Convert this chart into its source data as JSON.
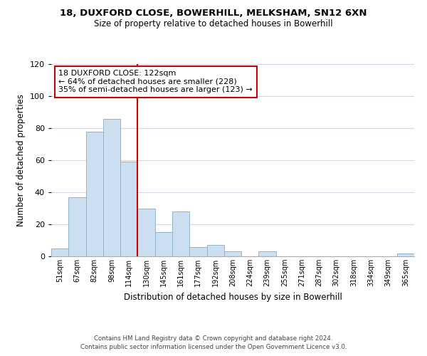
{
  "title_line1": "18, DUXFORD CLOSE, BOWERHILL, MELKSHAM, SN12 6XN",
  "title_line2": "Size of property relative to detached houses in Bowerhill",
  "xlabel": "Distribution of detached houses by size in Bowerhill",
  "ylabel": "Number of detached properties",
  "bar_labels": [
    "51sqm",
    "67sqm",
    "82sqm",
    "98sqm",
    "114sqm",
    "130sqm",
    "145sqm",
    "161sqm",
    "177sqm",
    "192sqm",
    "208sqm",
    "224sqm",
    "239sqm",
    "255sqm",
    "271sqm",
    "287sqm",
    "302sqm",
    "318sqm",
    "334sqm",
    "349sqm",
    "365sqm"
  ],
  "bar_values": [
    5,
    37,
    78,
    86,
    59,
    30,
    15,
    28,
    6,
    7,
    3,
    0,
    3,
    0,
    0,
    0,
    0,
    0,
    0,
    0,
    2
  ],
  "bar_color": "#ccdff0",
  "bar_edge_color": "#92b4cc",
  "vline_x": 4.5,
  "vline_color": "#cc0000",
  "annotation_title": "18 DUXFORD CLOSE: 122sqm",
  "annotation_line2": "← 64% of detached houses are smaller (228)",
  "annotation_line3": "35% of semi-detached houses are larger (123) →",
  "annotation_box_edge": "#cc0000",
  "ylim": [
    0,
    120
  ],
  "yticks": [
    0,
    20,
    40,
    60,
    80,
    100,
    120
  ],
  "footer_line1": "Contains HM Land Registry data © Crown copyright and database right 2024.",
  "footer_line2": "Contains public sector information licensed under the Open Government Licence v3.0."
}
